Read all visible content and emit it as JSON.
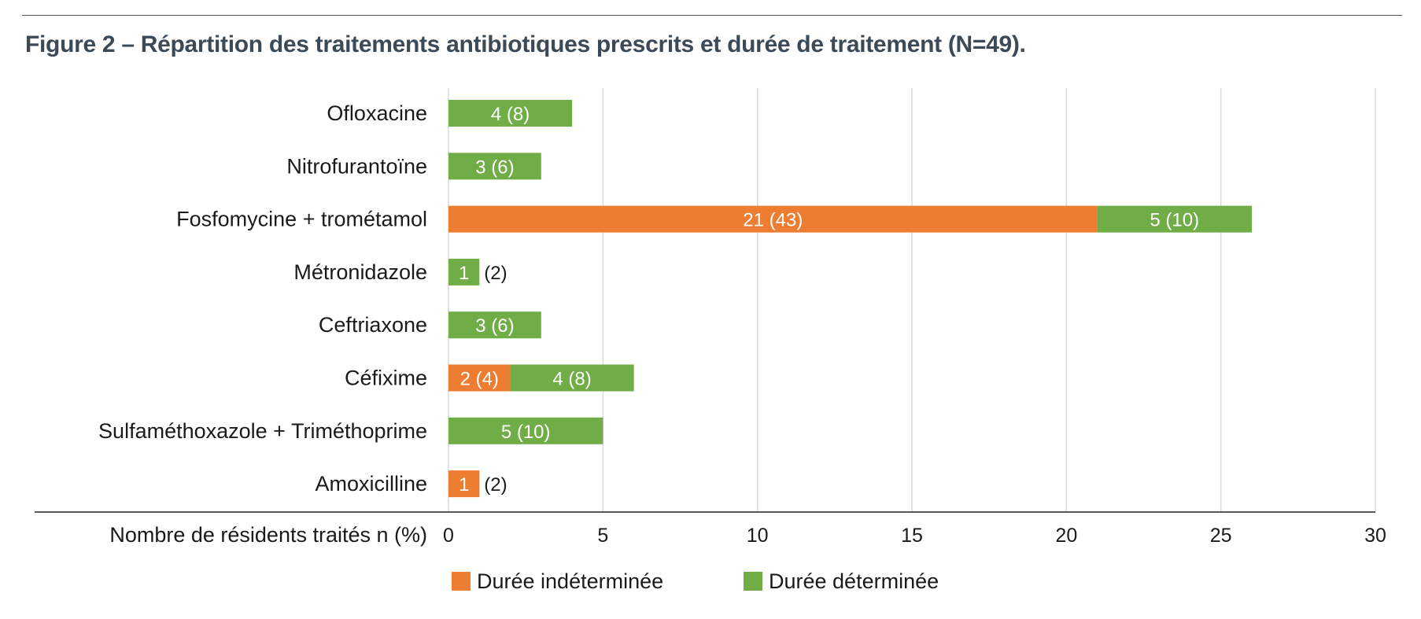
{
  "figure": {
    "title": "Figure 2 – Répartition des traitements antibiotiques prescrits et durée de traitement (N=49)."
  },
  "chart_data": {
    "type": "bar",
    "orientation": "horizontal",
    "stacked": true,
    "title": "",
    "xlabel": "Nombre de résidents traités n (%)",
    "ylabel": "",
    "xlim": [
      0,
      30
    ],
    "xticks": [
      0,
      5,
      10,
      15,
      20,
      25,
      30
    ],
    "grid": "vertical",
    "legend_position": "bottom",
    "categories": [
      "Ofloxacine",
      "Nitrofurantoïne",
      "Fosfomycine + trométamol",
      "Métronidazole",
      "Ceftriaxone",
      "Céfixime",
      "Sulfaméthoxazole + Triméthoprime",
      "Amoxicilline"
    ],
    "series": [
      {
        "name": "Durée indéterminée",
        "color": "#ed7d31",
        "values": [
          0,
          0,
          21,
          0,
          0,
          2,
          0,
          1
        ],
        "labels": [
          "",
          "",
          "21 (43)",
          "",
          "",
          "2 (4)",
          "",
          "1 (2)"
        ]
      },
      {
        "name": "Durée déterminée",
        "color": "#70ad47",
        "values": [
          4,
          3,
          5,
          1,
          3,
          4,
          5,
          0
        ],
        "labels": [
          "4 (8)",
          "3 (6)",
          "5 (10)",
          "1 (2)",
          "3 (6)",
          "4 (8)",
          "5 (10)",
          ""
        ]
      }
    ]
  }
}
